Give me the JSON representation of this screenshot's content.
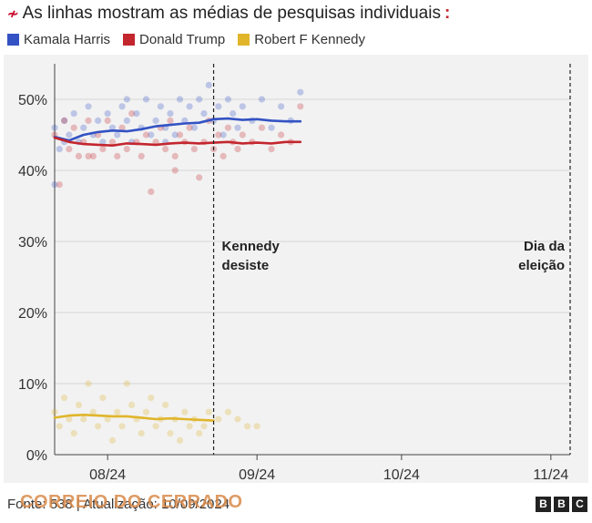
{
  "header": {
    "title": "As linhas mostram as médias de pesquisas individuais",
    "lead_icon": "zigzag-icon",
    "tail_icon": "colon-dots-icon"
  },
  "colors": {
    "harris": "#3352c4",
    "trump": "#c4262e",
    "kennedy": "#e0b52a",
    "panel_bg": "#f2f2f2",
    "watermark": "#d98a4a"
  },
  "footer": {
    "source_text": "Fonte: 538 | Atualização: 10/09/2024",
    "watermark": "CORREIO DO CERRADO",
    "bbc_letters": [
      "B",
      "B",
      "C"
    ]
  },
  "chart_data": {
    "type": "line",
    "title": "As linhas mostram as médias de pesquisas individuais",
    "xlabel": "",
    "ylabel": "",
    "x_ticks": [
      "08/24",
      "09/24",
      "10/24",
      "11/24"
    ],
    "x_range": [
      "2024-07-21",
      "2024-11-05"
    ],
    "y_ticks": [
      "0%",
      "10%",
      "20%",
      "30%",
      "40%",
      "50%"
    ],
    "ylim": [
      0,
      55
    ],
    "grid": "horizontal",
    "legend_position": "top-left",
    "annotations": [
      {
        "date": "2024-08-23",
        "text": "Kennedy desiste",
        "lines": [
          "Kennedy",
          "desiste"
        ]
      },
      {
        "date": "2024-11-05",
        "text": "Dia da eleição",
        "lines": [
          "Dia da",
          "eleição"
        ]
      }
    ],
    "series": [
      {
        "name": "Kamala Harris",
        "color": "#3352c4",
        "dates": [
          "2024-07-21",
          "2024-07-24",
          "2024-07-27",
          "2024-07-30",
          "2024-08-02",
          "2024-08-05",
          "2024-08-08",
          "2024-08-11",
          "2024-08-14",
          "2024-08-17",
          "2024-08-20",
          "2024-08-23",
          "2024-08-26",
          "2024-08-29",
          "2024-09-01",
          "2024-09-04",
          "2024-09-07",
          "2024-09-10"
        ],
        "values": [
          44.7,
          44.2,
          45.0,
          45.4,
          45.6,
          45.5,
          45.8,
          46.2,
          46.4,
          46.6,
          46.7,
          47.2,
          47.3,
          47.1,
          47.2,
          47.0,
          46.9,
          46.9
        ]
      },
      {
        "name": "Donald Trump",
        "color": "#c4262e",
        "dates": [
          "2024-07-21",
          "2024-07-24",
          "2024-07-27",
          "2024-07-30",
          "2024-08-02",
          "2024-08-05",
          "2024-08-08",
          "2024-08-11",
          "2024-08-14",
          "2024-08-17",
          "2024-08-20",
          "2024-08-23",
          "2024-08-26",
          "2024-08-29",
          "2024-09-01",
          "2024-09-04",
          "2024-09-07",
          "2024-09-10"
        ],
        "values": [
          44.6,
          44.0,
          43.7,
          43.6,
          43.5,
          43.8,
          43.7,
          43.6,
          43.8,
          43.9,
          43.8,
          43.9,
          44.0,
          43.8,
          43.9,
          43.8,
          44.0,
          44.0
        ]
      },
      {
        "name": "Robert F Kennedy",
        "color": "#e0b52a",
        "dates": [
          "2024-07-21",
          "2024-07-24",
          "2024-07-27",
          "2024-07-30",
          "2024-08-02",
          "2024-08-05",
          "2024-08-08",
          "2024-08-11",
          "2024-08-14",
          "2024-08-17",
          "2024-08-20",
          "2024-08-23"
        ],
        "values": [
          5.2,
          5.5,
          5.6,
          5.5,
          5.4,
          5.4,
          5.2,
          5.0,
          5.1,
          5.0,
          4.9,
          4.8
        ]
      }
    ],
    "polls": [
      {
        "series": "Kamala Harris",
        "points": [
          [
            "2024-07-21",
            46
          ],
          [
            "2024-07-22",
            43
          ],
          [
            "2024-07-23",
            47
          ],
          [
            "2024-07-24",
            45
          ],
          [
            "2024-07-25",
            48
          ],
          [
            "2024-07-26",
            44
          ],
          [
            "2024-07-27",
            46
          ],
          [
            "2024-07-28",
            49
          ],
          [
            "2024-07-29",
            45
          ],
          [
            "2024-07-30",
            47
          ],
          [
            "2024-07-31",
            44
          ],
          [
            "2024-08-01",
            48
          ],
          [
            "2024-08-02",
            46
          ],
          [
            "2024-08-03",
            45
          ],
          [
            "2024-08-04",
            49
          ],
          [
            "2024-08-05",
            47
          ],
          [
            "2024-08-06",
            44
          ],
          [
            "2024-08-07",
            48
          ],
          [
            "2024-08-08",
            46
          ],
          [
            "2024-08-09",
            50
          ],
          [
            "2024-08-10",
            45
          ],
          [
            "2024-08-11",
            47
          ],
          [
            "2024-08-12",
            49
          ],
          [
            "2024-08-13",
            46
          ],
          [
            "2024-08-14",
            48
          ],
          [
            "2024-08-15",
            45
          ],
          [
            "2024-08-16",
            50
          ],
          [
            "2024-08-17",
            47
          ],
          [
            "2024-08-18",
            49
          ],
          [
            "2024-08-19",
            46
          ],
          [
            "2024-08-20",
            50
          ],
          [
            "2024-08-21",
            48
          ],
          [
            "2024-08-22",
            52
          ],
          [
            "2024-08-23",
            47
          ],
          [
            "2024-08-24",
            49
          ],
          [
            "2024-08-25",
            45
          ],
          [
            "2024-08-26",
            50
          ],
          [
            "2024-08-27",
            48
          ],
          [
            "2024-08-28",
            46
          ],
          [
            "2024-08-29",
            49
          ],
          [
            "2024-08-31",
            47
          ],
          [
            "2024-09-02",
            50
          ],
          [
            "2024-09-04",
            46
          ],
          [
            "2024-09-06",
            49
          ],
          [
            "2024-09-08",
            47
          ],
          [
            "2024-09-10",
            51
          ],
          [
            "2024-07-21",
            38
          ],
          [
            "2024-07-23",
            44
          ],
          [
            "2024-08-05",
            50
          ],
          [
            "2024-08-13",
            44
          ]
        ]
      },
      {
        "series": "Donald Trump",
        "points": [
          [
            "2024-07-21",
            45
          ],
          [
            "2024-07-22",
            38
          ],
          [
            "2024-07-23",
            47
          ],
          [
            "2024-07-24",
            43
          ],
          [
            "2024-07-25",
            46
          ],
          [
            "2024-07-26",
            42
          ],
          [
            "2024-07-27",
            44
          ],
          [
            "2024-07-28",
            47
          ],
          [
            "2024-07-29",
            42
          ],
          [
            "2024-07-30",
            45
          ],
          [
            "2024-07-31",
            43
          ],
          [
            "2024-08-01",
            47
          ],
          [
            "2024-08-02",
            44
          ],
          [
            "2024-08-03",
            42
          ],
          [
            "2024-08-04",
            46
          ],
          [
            "2024-08-05",
            43
          ],
          [
            "2024-08-06",
            48
          ],
          [
            "2024-08-07",
            44
          ],
          [
            "2024-08-08",
            42
          ],
          [
            "2024-08-09",
            45
          ],
          [
            "2024-08-10",
            37
          ],
          [
            "2024-08-11",
            44
          ],
          [
            "2024-08-12",
            46
          ],
          [
            "2024-08-13",
            43
          ],
          [
            "2024-08-14",
            47
          ],
          [
            "2024-08-15",
            42
          ],
          [
            "2024-08-16",
            45
          ],
          [
            "2024-08-17",
            44
          ],
          [
            "2024-08-18",
            46
          ],
          [
            "2024-08-19",
            43
          ],
          [
            "2024-08-20",
            39
          ],
          [
            "2024-08-21",
            44
          ],
          [
            "2024-08-22",
            47
          ],
          [
            "2024-08-23",
            43
          ],
          [
            "2024-08-24",
            45
          ],
          [
            "2024-08-25",
            42
          ],
          [
            "2024-08-26",
            46
          ],
          [
            "2024-08-27",
            44
          ],
          [
            "2024-08-28",
            43
          ],
          [
            "2024-08-29",
            45
          ],
          [
            "2024-08-31",
            44
          ],
          [
            "2024-09-02",
            46
          ],
          [
            "2024-09-04",
            43
          ],
          [
            "2024-09-06",
            45
          ],
          [
            "2024-09-08",
            44
          ],
          [
            "2024-09-10",
            49
          ],
          [
            "2024-08-15",
            40
          ],
          [
            "2024-07-28",
            42
          ]
        ]
      },
      {
        "series": "Robert F Kennedy",
        "points": [
          [
            "2024-07-21",
            6
          ],
          [
            "2024-07-22",
            4
          ],
          [
            "2024-07-23",
            8
          ],
          [
            "2024-07-24",
            5
          ],
          [
            "2024-07-25",
            3
          ],
          [
            "2024-07-26",
            7
          ],
          [
            "2024-07-27",
            5
          ],
          [
            "2024-07-28",
            10
          ],
          [
            "2024-07-29",
            6
          ],
          [
            "2024-07-30",
            4
          ],
          [
            "2024-07-31",
            8
          ],
          [
            "2024-08-01",
            5
          ],
          [
            "2024-08-02",
            2
          ],
          [
            "2024-08-03",
            6
          ],
          [
            "2024-08-04",
            4
          ],
          [
            "2024-08-05",
            10
          ],
          [
            "2024-08-06",
            7
          ],
          [
            "2024-08-07",
            5
          ],
          [
            "2024-08-08",
            3
          ],
          [
            "2024-08-09",
            6
          ],
          [
            "2024-08-10",
            8
          ],
          [
            "2024-08-11",
            4
          ],
          [
            "2024-08-12",
            5
          ],
          [
            "2024-08-13",
            7
          ],
          [
            "2024-08-14",
            3
          ],
          [
            "2024-08-15",
            5
          ],
          [
            "2024-08-16",
            2
          ],
          [
            "2024-08-17",
            6
          ],
          [
            "2024-08-18",
            4
          ],
          [
            "2024-08-19",
            5
          ],
          [
            "2024-08-20",
            3
          ],
          [
            "2024-08-21",
            4
          ],
          [
            "2024-08-22",
            6
          ],
          [
            "2024-08-24",
            5
          ],
          [
            "2024-08-26",
            6
          ],
          [
            "2024-08-28",
            5
          ],
          [
            "2024-08-30",
            4
          ],
          [
            "2024-09-01",
            4
          ]
        ]
      }
    ]
  }
}
